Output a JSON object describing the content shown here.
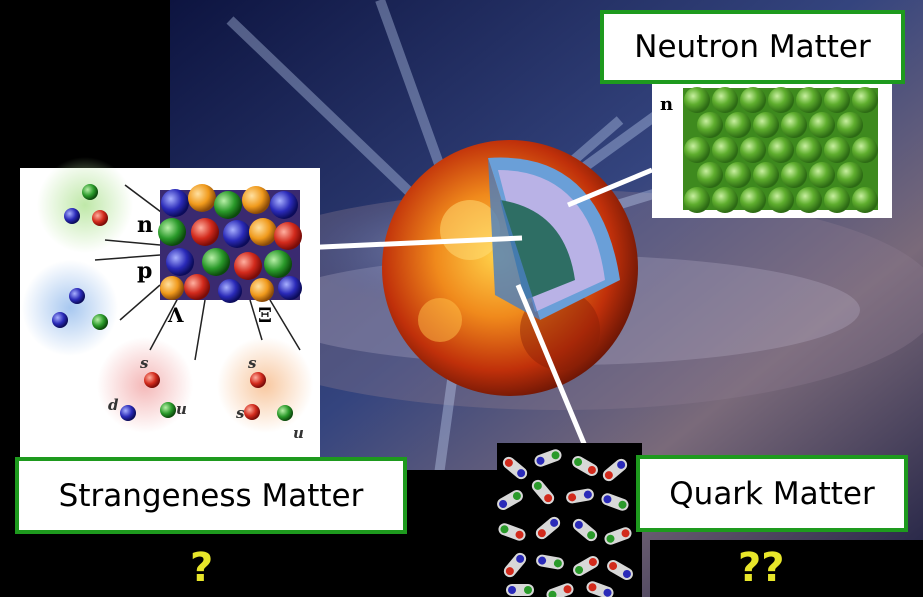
{
  "labels": {
    "neutron_matter": "Neutron Matter",
    "strangeness_matter": "Strangeness Matter",
    "quark_matter": "Quark Matter"
  },
  "question_marks": {
    "left": "?",
    "right": "??"
  },
  "particle_symbols": {
    "neutron": "n",
    "proton": "p",
    "lambda": "Λ",
    "xi": "Ξ",
    "inset_neutron": "n"
  },
  "quark_symbols": {
    "lambda_quarks": [
      "s",
      "d",
      "u"
    ],
    "xi_quarks": [
      "s",
      "s",
      "u"
    ]
  },
  "colors": {
    "label_border": "#1e9a1e",
    "question_mark": "#e8e62a",
    "star_core": "#2e6e64",
    "star_mantle": "#b9b2e6",
    "star_crust": "#6a9fd8"
  }
}
